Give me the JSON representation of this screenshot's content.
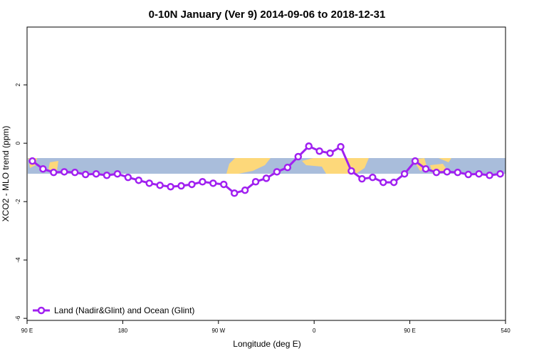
{
  "chart_data": {
    "type": "line",
    "title": "0-10N January (Ver 9)   2014-09-06 to 2018-12-31",
    "x_label": "Longitude (deg E)",
    "y_label": "XCO2 - MLO trend (ppm)",
    "x": [
      95,
      105,
      115,
      125,
      135,
      145,
      155,
      165,
      175,
      185,
      195,
      205,
      215,
      225,
      235,
      245,
      255,
      265,
      275,
      285,
      295,
      305,
      315,
      325,
      335,
      345,
      355,
      365,
      375,
      385,
      395,
      405,
      415,
      425,
      435,
      445,
      455,
      465,
      475,
      485,
      495,
      505,
      515,
      525,
      535
    ],
    "series": [
      {
        "name": "Land (Nadir&Glint) and Ocean (Glint)",
        "color": "#a020f0",
        "values": [
          -0.61,
          -0.88,
          -1.0,
          -0.98,
          -1.0,
          -1.07,
          -1.05,
          -1.1,
          -1.05,
          -1.17,
          -1.27,
          -1.37,
          -1.44,
          -1.49,
          -1.46,
          -1.41,
          -1.32,
          -1.37,
          -1.41,
          -1.71,
          -1.61,
          -1.32,
          -1.2,
          -0.98,
          -0.83,
          -0.46,
          -0.1,
          -0.27,
          -0.34,
          -0.12,
          -0.95,
          -1.22,
          -1.17,
          -1.34,
          -1.34,
          -1.05,
          -0.61,
          -0.88,
          -1.0,
          -0.98,
          -1.0,
          -1.07,
          -1.05,
          -1.1,
          -1.05
        ]
      }
    ],
    "xlim": [
      90,
      540
    ],
    "xticks": [
      {
        "value": 90,
        "label": "90 E"
      },
      180,
      {
        "value": 270,
        "label": "90 W"
      },
      {
        "value": 360,
        "label": "0"
      },
      {
        "value": 450,
        "label": "90 E"
      },
      540
    ],
    "ylim": [
      -6.07,
      3.98
    ],
    "yticks": [
      -6,
      -4,
      -2,
      0,
      2
    ],
    "legend": "bottom-left"
  }
}
